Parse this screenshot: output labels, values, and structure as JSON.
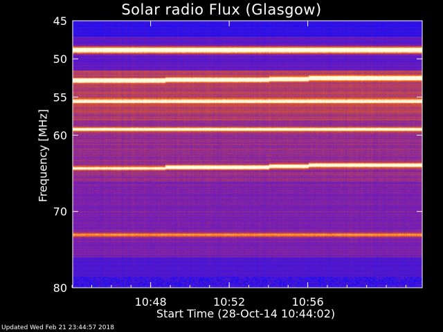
{
  "chart_data": {
    "type": "heatmap",
    "title": "Solar radio Flux (Glasgow)",
    "ylabel": "Frequency [MHz]",
    "xlabel": "Start Time (28-Oct-14 10:44:02)",
    "footer": "Updated Wed Feb 21 23:44:57 2018",
    "x_range_minutes": [
      0,
      17.8
    ],
    "ylim": [
      45,
      80
    ],
    "y_axis_inverted": true,
    "x_ticks": [
      {
        "label": "10:48",
        "minute": 3.97
      },
      {
        "label": "10:52",
        "minute": 7.97
      },
      {
        "label": "10:56",
        "minute": 11.97
      }
    ],
    "y_ticks": [
      45,
      50,
      55,
      60,
      70,
      80
    ],
    "y_tick_labels": [
      "45",
      "50",
      "55",
      "60",
      "70",
      "80"
    ],
    "segment_boundaries_minutes": [
      4.7,
      10.0,
      12.0
    ],
    "emission_bands_mhz": [
      {
        "f_mhz": 48.8,
        "intensity": 1.0
      },
      {
        "f_mhz": 52.8,
        "intensity": 0.9
      },
      {
        "f_mhz": 55.5,
        "intensity": 0.55
      },
      {
        "f_mhz": 59.2,
        "intensity": 0.6
      },
      {
        "f_mhz": 64.3,
        "intensity": 0.75
      },
      {
        "f_mhz": 73.0,
        "intensity": 0.4
      }
    ],
    "colormap": {
      "low": "#0a0aff",
      "mid": "#7a1fb0",
      "high": "#ff6a00",
      "peak": "#fffbe0"
    }
  }
}
